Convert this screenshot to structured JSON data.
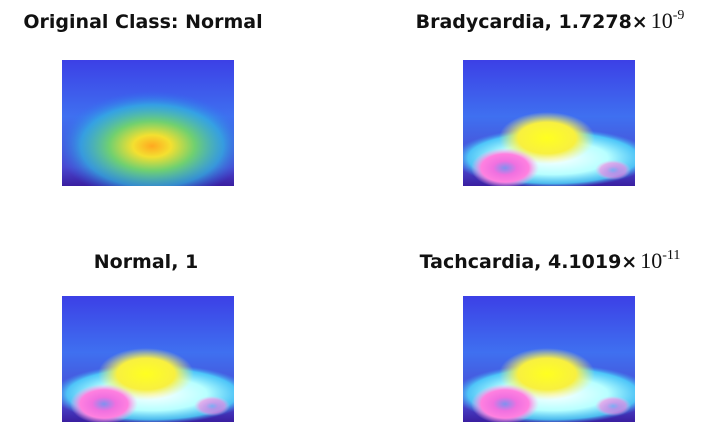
{
  "panels": [
    {
      "title": "Original Class: Normal"
    },
    {
      "title": "Bradycardia, 1.7278×",
      "base": "10",
      "exponent": "-9"
    },
    {
      "title": "Normal, 1"
    },
    {
      "title": "Tachcardia, 4.1019×",
      "base": "10",
      "exponent": "-11"
    }
  ]
}
